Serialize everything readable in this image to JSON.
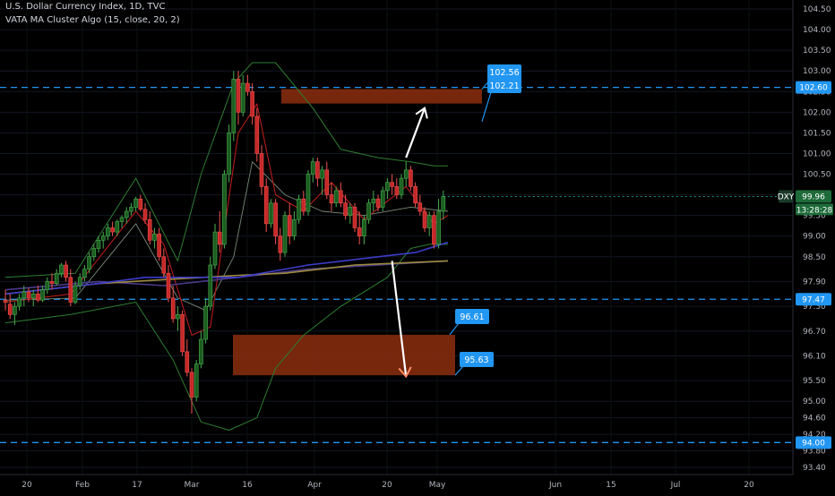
{
  "header": {
    "title": "U.S. Dollar Currency Index, 1D, TVC",
    "indicator": "VATA MA Cluster Algo (15, close, 20, 2)"
  },
  "chart_data": {
    "type": "candlestick",
    "title": "U.S. Dollar Currency Index, 1D, TVC",
    "symbol": "DXY",
    "last_price": "99.96",
    "countdown": "13:28:28",
    "indicator": "VATA MA Cluster Algo (15, close, 20, 2)",
    "ylim": [
      93.2,
      104.7
    ],
    "y_ticks": [
      "104.50",
      "104.00",
      "103.50",
      "103.00",
      "102.50",
      "102.00",
      "101.50",
      "101.00",
      "100.50",
      "100.00",
      "99.50",
      "99.00",
      "98.50",
      "97.90",
      "97.30",
      "96.70",
      "96.10",
      "95.50",
      "95.00",
      "94.60",
      "94.20",
      "93.80",
      "93.40"
    ],
    "x_ticks": [
      "20",
      "Feb",
      "17",
      "Mar",
      "16",
      "Apr",
      "20",
      "May",
      "Jun",
      "15",
      "Jul",
      "20"
    ],
    "horizontal_levels": [
      {
        "label": "102.60",
        "value": 102.6
      },
      {
        "label": "97.47",
        "value": 97.47
      },
      {
        "label": "94.00",
        "value": 94.0
      }
    ],
    "zones": [
      {
        "top": 102.56,
        "bottom": 102.21,
        "top_label": "102.56",
        "bottom_label": "102.21"
      },
      {
        "top": 96.61,
        "bottom": 95.63,
        "top_label": "96.61",
        "bottom_label": "95.63"
      }
    ],
    "candles": [
      {
        "o": 97.45,
        "h": 97.7,
        "l": 97.2,
        "c": 97.4
      },
      {
        "o": 97.35,
        "h": 97.6,
        "l": 97.0,
        "c": 97.1
      },
      {
        "o": 97.1,
        "h": 97.4,
        "l": 96.85,
        "c": 97.3
      },
      {
        "o": 97.3,
        "h": 97.6,
        "l": 97.2,
        "c": 97.5
      },
      {
        "o": 97.5,
        "h": 97.8,
        "l": 97.3,
        "c": 97.65
      },
      {
        "o": 97.65,
        "h": 97.75,
        "l": 97.4,
        "c": 97.5
      },
      {
        "o": 97.5,
        "h": 97.7,
        "l": 97.3,
        "c": 97.6
      },
      {
        "o": 97.6,
        "h": 97.8,
        "l": 97.4,
        "c": 97.45
      },
      {
        "o": 97.45,
        "h": 97.8,
        "l": 97.4,
        "c": 97.7
      },
      {
        "o": 97.7,
        "h": 98.0,
        "l": 97.6,
        "c": 97.9
      },
      {
        "o": 97.9,
        "h": 98.1,
        "l": 97.7,
        "c": 97.85
      },
      {
        "o": 97.85,
        "h": 98.2,
        "l": 97.8,
        "c": 98.1
      },
      {
        "o": 98.1,
        "h": 98.35,
        "l": 98.0,
        "c": 98.3
      },
      {
        "o": 98.3,
        "h": 98.4,
        "l": 97.9,
        "c": 98.0
      },
      {
        "o": 98.0,
        "h": 98.2,
        "l": 97.3,
        "c": 97.4
      },
      {
        "o": 97.4,
        "h": 97.9,
        "l": 97.35,
        "c": 97.8
      },
      {
        "o": 97.8,
        "h": 98.1,
        "l": 97.7,
        "c": 98.0
      },
      {
        "o": 98.0,
        "h": 98.3,
        "l": 97.9,
        "c": 98.2
      },
      {
        "o": 98.2,
        "h": 98.6,
        "l": 98.1,
        "c": 98.5
      },
      {
        "o": 98.5,
        "h": 98.8,
        "l": 98.4,
        "c": 98.7
      },
      {
        "o": 98.7,
        "h": 99.0,
        "l": 98.6,
        "c": 98.9
      },
      {
        "o": 98.9,
        "h": 99.1,
        "l": 98.7,
        "c": 99.0
      },
      {
        "o": 99.0,
        "h": 99.3,
        "l": 98.9,
        "c": 99.2
      },
      {
        "o": 99.2,
        "h": 99.35,
        "l": 99.0,
        "c": 99.1
      },
      {
        "o": 99.1,
        "h": 99.4,
        "l": 99.0,
        "c": 99.35
      },
      {
        "o": 99.35,
        "h": 99.5,
        "l": 99.2,
        "c": 99.45
      },
      {
        "o": 99.45,
        "h": 99.7,
        "l": 99.3,
        "c": 99.6
      },
      {
        "o": 99.6,
        "h": 99.8,
        "l": 99.5,
        "c": 99.7
      },
      {
        "o": 99.7,
        "h": 99.95,
        "l": 99.6,
        "c": 99.9
      },
      {
        "o": 99.9,
        "h": 100.0,
        "l": 99.6,
        "c": 99.65
      },
      {
        "o": 99.65,
        "h": 99.8,
        "l": 99.3,
        "c": 99.4
      },
      {
        "o": 99.4,
        "h": 99.6,
        "l": 98.8,
        "c": 98.9
      },
      {
        "o": 98.9,
        "h": 99.2,
        "l": 98.7,
        "c": 99.05
      },
      {
        "o": 99.05,
        "h": 99.2,
        "l": 98.4,
        "c": 98.5
      },
      {
        "o": 98.5,
        "h": 98.7,
        "l": 98.0,
        "c": 98.1
      },
      {
        "o": 98.1,
        "h": 98.3,
        "l": 97.4,
        "c": 97.5
      },
      {
        "o": 97.5,
        "h": 97.8,
        "l": 96.9,
        "c": 97.0
      },
      {
        "o": 97.0,
        "h": 97.3,
        "l": 96.7,
        "c": 97.1
      },
      {
        "o": 97.1,
        "h": 97.2,
        "l": 96.1,
        "c": 96.2
      },
      {
        "o": 96.2,
        "h": 96.5,
        "l": 95.6,
        "c": 95.7
      },
      {
        "o": 95.7,
        "h": 95.8,
        "l": 94.7,
        "c": 95.1
      },
      {
        "o": 95.1,
        "h": 96.0,
        "l": 95.0,
        "c": 95.9
      },
      {
        "o": 95.9,
        "h": 96.7,
        "l": 95.8,
        "c": 96.5
      },
      {
        "o": 96.5,
        "h": 97.5,
        "l": 96.4,
        "c": 97.3
      },
      {
        "o": 97.3,
        "h": 98.5,
        "l": 97.2,
        "c": 98.3
      },
      {
        "o": 98.3,
        "h": 99.3,
        "l": 98.2,
        "c": 99.1
      },
      {
        "o": 99.1,
        "h": 99.6,
        "l": 98.6,
        "c": 98.8
      },
      {
        "o": 98.8,
        "h": 100.6,
        "l": 98.7,
        "c": 100.5
      },
      {
        "o": 100.5,
        "h": 101.7,
        "l": 100.3,
        "c": 101.5
      },
      {
        "o": 101.5,
        "h": 103.0,
        "l": 101.3,
        "c": 102.8
      },
      {
        "o": 102.8,
        "h": 103.0,
        "l": 101.7,
        "c": 102.0
      },
      {
        "o": 102.0,
        "h": 102.9,
        "l": 101.9,
        "c": 102.7
      },
      {
        "o": 102.7,
        "h": 102.9,
        "l": 102.4,
        "c": 102.5
      },
      {
        "o": 102.5,
        "h": 102.7,
        "l": 101.7,
        "c": 101.9
      },
      {
        "o": 101.9,
        "h": 102.1,
        "l": 100.8,
        "c": 101.0
      },
      {
        "o": 101.0,
        "h": 101.2,
        "l": 100.0,
        "c": 100.2
      },
      {
        "o": 100.2,
        "h": 100.4,
        "l": 99.1,
        "c": 99.3
      },
      {
        "o": 99.3,
        "h": 99.9,
        "l": 99.2,
        "c": 99.8
      },
      {
        "o": 99.8,
        "h": 99.9,
        "l": 98.8,
        "c": 99.0
      },
      {
        "o": 99.0,
        "h": 99.2,
        "l": 98.4,
        "c": 98.6
      },
      {
        "o": 98.6,
        "h": 99.6,
        "l": 98.5,
        "c": 99.5
      },
      {
        "o": 99.5,
        "h": 99.8,
        "l": 98.8,
        "c": 99.0
      },
      {
        "o": 99.0,
        "h": 99.6,
        "l": 98.9,
        "c": 99.4
      },
      {
        "o": 99.4,
        "h": 100.0,
        "l": 99.3,
        "c": 99.9
      },
      {
        "o": 99.9,
        "h": 100.1,
        "l": 99.5,
        "c": 99.6
      },
      {
        "o": 99.6,
        "h": 100.6,
        "l": 99.5,
        "c": 100.5
      },
      {
        "o": 100.5,
        "h": 100.9,
        "l": 100.3,
        "c": 100.8
      },
      {
        "o": 100.8,
        "h": 100.9,
        "l": 100.2,
        "c": 100.4
      },
      {
        "o": 100.4,
        "h": 100.7,
        "l": 100.0,
        "c": 100.6
      },
      {
        "o": 100.6,
        "h": 100.8,
        "l": 99.9,
        "c": 100.0
      },
      {
        "o": 100.0,
        "h": 100.3,
        "l": 99.6,
        "c": 99.8
      },
      {
        "o": 99.8,
        "h": 100.2,
        "l": 99.7,
        "c": 100.1
      },
      {
        "o": 100.1,
        "h": 100.3,
        "l": 99.7,
        "c": 99.8
      },
      {
        "o": 99.8,
        "h": 100.0,
        "l": 99.4,
        "c": 99.5
      },
      {
        "o": 99.5,
        "h": 99.8,
        "l": 99.3,
        "c": 99.7
      },
      {
        "o": 99.7,
        "h": 99.8,
        "l": 99.1,
        "c": 99.2
      },
      {
        "o": 99.2,
        "h": 99.6,
        "l": 98.8,
        "c": 99.0
      },
      {
        "o": 99.0,
        "h": 99.5,
        "l": 98.8,
        "c": 99.4
      },
      {
        "o": 99.4,
        "h": 99.9,
        "l": 99.3,
        "c": 99.8
      },
      {
        "o": 99.8,
        "h": 100.1,
        "l": 99.6,
        "c": 99.9
      },
      {
        "o": 99.9,
        "h": 100.0,
        "l": 99.6,
        "c": 99.7
      },
      {
        "o": 99.7,
        "h": 100.2,
        "l": 99.6,
        "c": 100.1
      },
      {
        "o": 100.1,
        "h": 100.4,
        "l": 99.9,
        "c": 100.3
      },
      {
        "o": 100.3,
        "h": 100.5,
        "l": 100.0,
        "c": 100.2
      },
      {
        "o": 100.2,
        "h": 100.4,
        "l": 99.9,
        "c": 100.0
      },
      {
        "o": 100.0,
        "h": 100.5,
        "l": 99.9,
        "c": 100.4
      },
      {
        "o": 100.4,
        "h": 100.8,
        "l": 100.2,
        "c": 100.6
      },
      {
        "o": 100.6,
        "h": 100.7,
        "l": 100.1,
        "c": 100.2
      },
      {
        "o": 100.2,
        "h": 100.3,
        "l": 99.7,
        "c": 99.8
      },
      {
        "o": 99.8,
        "h": 100.0,
        "l": 99.5,
        "c": 99.6
      },
      {
        "o": 99.6,
        "h": 99.7,
        "l": 99.1,
        "c": 99.2
      },
      {
        "o": 99.2,
        "h": 99.6,
        "l": 99.0,
        "c": 99.5
      },
      {
        "o": 99.5,
        "h": 99.6,
        "l": 98.7,
        "c": 98.8
      },
      {
        "o": 98.8,
        "h": 99.9,
        "l": 98.7,
        "c": 99.6
      },
      {
        "o": 99.6,
        "h": 100.1,
        "l": 99.4,
        "c": 99.96
      }
    ],
    "bollinger_upper": [
      [
        0,
        98.0
      ],
      [
        15,
        98.1
      ],
      [
        28,
        100.4
      ],
      [
        37,
        98.4
      ],
      [
        42,
        100.5
      ],
      [
        49,
        102.7
      ],
      [
        53,
        103.2
      ],
      [
        58,
        103.2
      ],
      [
        66,
        102.1
      ],
      [
        72,
        101.1
      ],
      [
        80,
        100.9
      ],
      [
        87,
        100.8
      ],
      [
        92,
        100.7
      ],
      [
        95,
        100.7
      ]
    ],
    "bollinger_lower": [
      [
        0,
        96.9
      ],
      [
        14,
        97.1
      ],
      [
        28,
        97.4
      ],
      [
        36,
        96.0
      ],
      [
        42,
        94.5
      ],
      [
        48,
        94.3
      ],
      [
        54,
        94.6
      ],
      [
        58,
        95.8
      ],
      [
        64,
        96.6
      ],
      [
        72,
        97.3
      ],
      [
        82,
        98.0
      ],
      [
        87,
        98.7
      ],
      [
        91,
        98.8
      ],
      [
        95,
        98.8
      ]
    ],
    "bollinger_mid": [
      [
        0,
        97.45
      ],
      [
        15,
        97.5
      ],
      [
        28,
        99.3
      ],
      [
        37,
        97.5
      ],
      [
        43,
        97.2
      ],
      [
        49,
        98.5
      ],
      [
        53,
        100.8
      ],
      [
        60,
        100.0
      ],
      [
        68,
        99.6
      ],
      [
        77,
        99.5
      ],
      [
        87,
        99.7
      ],
      [
        95,
        99.6
      ]
    ],
    "ma_fast": [
      [
        0,
        97.4
      ],
      [
        14,
        97.6
      ],
      [
        28,
        99.6
      ],
      [
        34,
        98.8
      ],
      [
        40,
        96.6
      ],
      [
        44,
        96.8
      ],
      [
        50,
        101.5
      ],
      [
        54,
        102.2
      ],
      [
        58,
        100.0
      ],
      [
        64,
        99.6
      ],
      [
        70,
        100.3
      ],
      [
        77,
        99.4
      ],
      [
        86,
        100.2
      ],
      [
        92,
        99.3
      ],
      [
        95,
        99.5
      ]
    ],
    "ma_slow": [
      [
        0,
        97.7
      ],
      [
        20,
        97.9
      ],
      [
        34,
        97.8
      ],
      [
        50,
        98.0
      ],
      [
        65,
        98.2
      ],
      [
        80,
        98.3
      ],
      [
        95,
        98.4
      ]
    ],
    "ma_long": [
      [
        0,
        97.6
      ],
      [
        20,
        97.85
      ],
      [
        35,
        97.95
      ],
      [
        50,
        98.05
      ],
      [
        60,
        98.1
      ],
      [
        75,
        98.3
      ],
      [
        85,
        98.35
      ],
      [
        95,
        98.4
      ]
    ],
    "ma_200": [
      [
        0,
        97.6
      ],
      [
        20,
        97.85
      ],
      [
        30,
        98.0
      ],
      [
        50,
        98.0
      ],
      [
        65,
        98.3
      ],
      [
        80,
        98.5
      ],
      [
        88,
        98.6
      ],
      [
        95,
        98.85
      ]
    ],
    "arrows": [
      {
        "from_index": 86,
        "from_price": 100.9,
        "to_index": 90,
        "to_price": 102.1
      },
      {
        "from_index": 83,
        "from_price": 98.4,
        "to_index": 86,
        "to_price": 95.6
      }
    ]
  }
}
